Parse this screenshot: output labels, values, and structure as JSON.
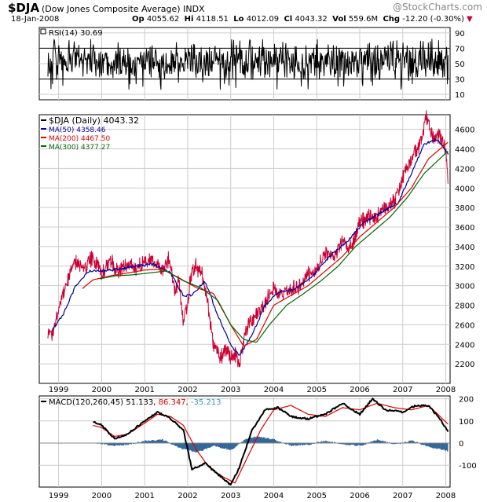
{
  "header": {
    "symbol": "$DJA",
    "name": "(Dow Jones Composite Average)",
    "exchange": "INDX",
    "brand": "@StockCharts.com",
    "date": "18-Jan-2008",
    "quote": {
      "open_label": "Op",
      "open": "4055.62",
      "high_label": "Hi",
      "high": "4118.51",
      "low_label": "Lo",
      "low": "4012.09",
      "close_label": "Cl",
      "close": "4043.32",
      "vol_label": "Vol",
      "vol": "559.6M",
      "chg_label": "Chg",
      "chg": "-12.20 (-0.30%)",
      "arrow": "▼"
    }
  },
  "legends": {
    "rsi": "RSI(14) 30.69",
    "price": "$DJA (Daily) 4043.32",
    "ma50": "MA(50) 4358.46",
    "ma200": "MA(200) 4467.50",
    "ma300": "MA(300) 4377.27",
    "macd": "MACD(120,260,45) 51.133,",
    "macd_signal": "86.347,",
    "macd_hist": "-35.213"
  },
  "colors": {
    "price": "#cc0033",
    "ma50": "#000099",
    "ma200": "#dd0000",
    "ma300": "#006600",
    "macd": "#000000",
    "signal": "#dd0000",
    "hist": "#336699",
    "hist_label": "#3399bb",
    "grid": "#cccccc"
  },
  "chart_data": [
    {
      "type": "line",
      "panel": "RSI(14)",
      "ylim": [
        0,
        100
      ],
      "y_ticks": [
        10,
        30,
        50,
        70,
        90
      ],
      "reference_lines": [
        30,
        70
      ],
      "current_value": 30.69
    },
    {
      "type": "line",
      "panel": "$DJA (Daily)",
      "x_ticks": [
        "1999",
        "2000",
        "2001",
        "2002",
        "2003",
        "2004",
        "2005",
        "2006",
        "2007",
        "2008"
      ],
      "y_ticks": [
        2200,
        2400,
        2600,
        2800,
        3000,
        3200,
        3400,
        3600,
        3800,
        4000,
        4200,
        4400,
        4600
      ],
      "ylim": [
        2000,
        4750
      ],
      "grid": true,
      "series": [
        {
          "name": "$DJA (Daily)",
          "x": [
            1998.75,
            1998.85,
            1999.0,
            1999.15,
            1999.3,
            1999.45,
            1999.6,
            1999.75,
            1999.9,
            2000.0,
            2000.2,
            2000.4,
            2000.6,
            2000.8,
            2001.0,
            2001.2,
            2001.4,
            2001.55,
            2001.7,
            2001.8,
            2001.9,
            2002.0,
            2002.1,
            2002.2,
            2002.35,
            2002.5,
            2002.6,
            2002.75,
            2002.9,
            2003.0,
            2003.1,
            2003.2,
            2003.35,
            2003.5,
            2003.7,
            2003.9,
            2004.0,
            2004.2,
            2004.4,
            2004.6,
            2004.8,
            2005.0,
            2005.2,
            2005.4,
            2005.6,
            2005.8,
            2006.0,
            2006.2,
            2006.4,
            2006.6,
            2006.8,
            2007.0,
            2007.2,
            2007.4,
            2007.55,
            2007.7,
            2007.85,
            2008.0,
            2008.05
          ],
          "values": [
            2550,
            2480,
            2780,
            2950,
            3200,
            3250,
            3150,
            3280,
            3230,
            3120,
            3250,
            3150,
            3220,
            3180,
            3250,
            3250,
            3150,
            3280,
            2950,
            3050,
            2600,
            2850,
            3150,
            3200,
            3100,
            2720,
            2400,
            2250,
            2350,
            2250,
            2300,
            2180,
            2550,
            2650,
            2750,
            2900,
            2950,
            2920,
            2960,
            3000,
            3120,
            3150,
            3350,
            3300,
            3450,
            3400,
            3650,
            3700,
            3700,
            3800,
            3850,
            4100,
            4300,
            4450,
            4700,
            4500,
            4550,
            4400,
            4043
          ]
        },
        {
          "name": "MA(50)",
          "x": [
            1998.85,
            1999.1,
            1999.4,
            1999.7,
            2000.0,
            2000.4,
            2000.8,
            2001.2,
            2001.6,
            2001.9,
            2002.1,
            2002.4,
            2002.7,
            2003.0,
            2003.2,
            2003.5,
            2003.8,
            2004.1,
            2004.5,
            2004.9,
            2005.3,
            2005.7,
            2006.1,
            2006.5,
            2006.9,
            2007.2,
            2007.5,
            2007.8,
            2008.05
          ],
          "values": [
            2550,
            2700,
            3000,
            3150,
            3150,
            3170,
            3200,
            3220,
            3130,
            2900,
            2900,
            3050,
            2700,
            2400,
            2280,
            2500,
            2800,
            2930,
            2970,
            3100,
            3300,
            3450,
            3650,
            3750,
            3850,
            4150,
            4450,
            4500,
            4358
          ]
        },
        {
          "name": "MA(200)",
          "x": [
            1999.55,
            1999.8,
            2000.2,
            2000.6,
            2001.0,
            2001.4,
            2001.8,
            2002.2,
            2002.6,
            2003.0,
            2003.3,
            2003.6,
            2004.0,
            2004.4,
            2004.8,
            2005.2,
            2005.6,
            2006.0,
            2006.4,
            2006.8,
            2007.2,
            2007.6,
            2008.05
          ],
          "values": [
            2970,
            3060,
            3100,
            3130,
            3160,
            3170,
            3080,
            2980,
            2920,
            2600,
            2380,
            2450,
            2800,
            2900,
            3000,
            3150,
            3300,
            3500,
            3650,
            3800,
            4000,
            4300,
            4467
          ]
        },
        {
          "name": "MA(300)",
          "x": [
            1999.95,
            2000.3,
            2000.7,
            2001.1,
            2001.5,
            2001.9,
            2002.3,
            2002.7,
            2003.0,
            2003.3,
            2003.6,
            2003.9,
            2004.3,
            2004.7,
            2005.1,
            2005.5,
            2005.9,
            2006.3,
            2006.7,
            2007.1,
            2007.5,
            2008.05
          ],
          "values": [
            3070,
            3100,
            3110,
            3130,
            3150,
            3050,
            2980,
            2850,
            2600,
            2450,
            2420,
            2600,
            2800,
            2920,
            3050,
            3200,
            3400,
            3550,
            3700,
            3900,
            4150,
            4377
          ]
        }
      ]
    },
    {
      "type": "line",
      "panel": "MACD(120,260,45)",
      "y_ticks": [
        -100,
        0,
        100,
        200
      ],
      "x_ticks": [
        "1999",
        "2000",
        "2001",
        "2002",
        "2003",
        "2004",
        "2005",
        "2006",
        "2007",
        "2008"
      ],
      "series": [
        {
          "name": "MACD",
          "x": [
            1999.8,
            2000.0,
            2000.3,
            2000.6,
            2001.0,
            2001.3,
            2001.6,
            2001.9,
            2002.1,
            2002.4,
            2002.7,
            2003.0,
            2003.2,
            2003.5,
            2003.8,
            2004.1,
            2004.4,
            2004.8,
            2005.2,
            2005.6,
            2006.0,
            2006.3,
            2006.6,
            2007.0,
            2007.3,
            2007.6,
            2007.9,
            2008.05
          ],
          "values": [
            100,
            80,
            20,
            40,
            100,
            140,
            110,
            60,
            -120,
            -90,
            -140,
            -190,
            -110,
            60,
            150,
            160,
            120,
            110,
            130,
            180,
            130,
            200,
            150,
            140,
            170,
            170,
            100,
            51
          ]
        },
        {
          "name": "Signal",
          "x": [
            1999.8,
            2000.0,
            2000.3,
            2000.6,
            2001.0,
            2001.3,
            2001.6,
            2001.9,
            2002.2,
            2002.5,
            2002.8,
            2003.1,
            2003.4,
            2003.7,
            2004.0,
            2004.4,
            2004.8,
            2005.2,
            2005.6,
            2006.0,
            2006.4,
            2006.8,
            2007.2,
            2007.6,
            2008.05
          ],
          "values": [
            80,
            70,
            30,
            40,
            90,
            130,
            120,
            80,
            -30,
            -110,
            -150,
            -180,
            -60,
            60,
            150,
            170,
            130,
            120,
            160,
            150,
            180,
            160,
            150,
            170,
            86
          ]
        },
        {
          "name": "Histogram",
          "x": [
            1999.8,
            2000.2,
            2000.6,
            2001.0,
            2001.4,
            2001.8,
            2002.2,
            2002.6,
            2003.0,
            2003.3,
            2003.6,
            2004.0,
            2004.4,
            2004.8,
            2005.2,
            2005.6,
            2006.0,
            2006.4,
            2006.8,
            2007.2,
            2007.6,
            2008.05
          ],
          "values": [
            5,
            -10,
            -5,
            10,
            15,
            -20,
            -40,
            -10,
            -30,
            15,
            30,
            15,
            -10,
            -5,
            10,
            -5,
            -10,
            15,
            -5,
            10,
            -15,
            -35
          ]
        }
      ]
    }
  ]
}
